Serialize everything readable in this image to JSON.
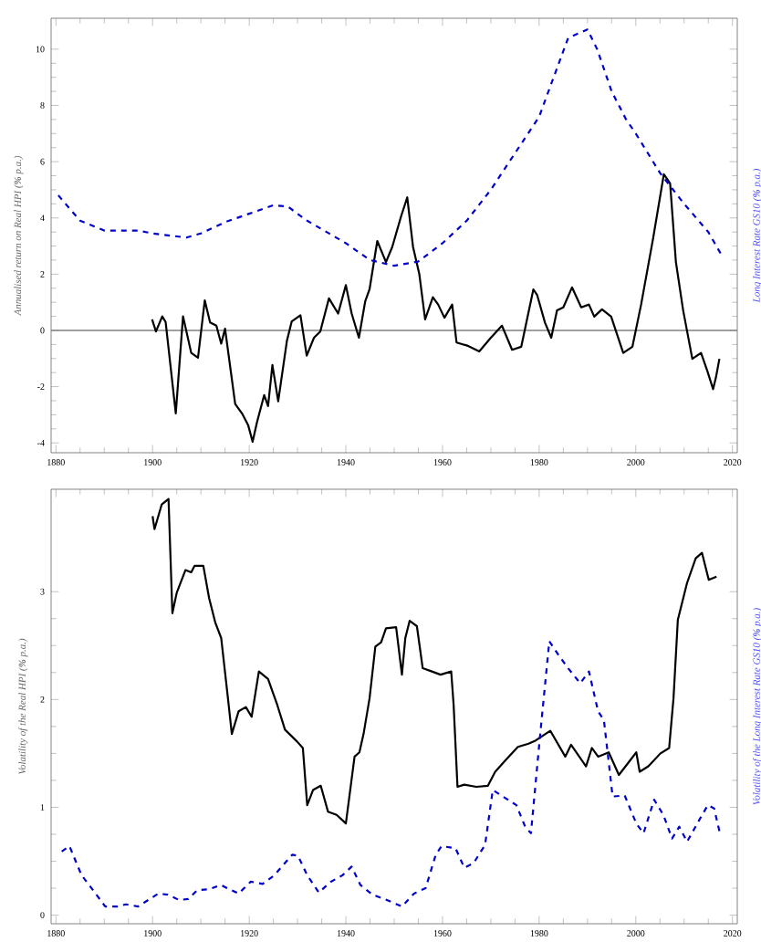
{
  "chart_data": [
    {
      "type": "line",
      "ylabel": "Annualised return on Real HPI (**%** p.a.)",
      "y2label": "Long Interest Rate GS10 (**%** p.a.)",
      "xlim": [
        1879,
        2021
      ],
      "ylim": [
        -4.35,
        11.1
      ],
      "xticks": [
        1880,
        1900,
        1920,
        1940,
        1960,
        1980,
        2000,
        2020
      ],
      "yticks": [
        -4,
        -2,
        0,
        2,
        4,
        6,
        8,
        10
      ],
      "grid": false,
      "ref_lines": [
        {
          "axis": "y",
          "value": 0,
          "color": "#808080"
        }
      ],
      "series": [
        {
          "color": "#000000",
          "line_style": "solid",
          "x": [
            1899.9,
            1900.7,
            1902,
            1902.7,
            1904.8,
            1906.3,
            1908,
            1909.4,
            1910.8,
            1911.9,
            1913.2,
            1914.2,
            1915,
            1917.1,
            1918.5,
            1919.8,
            1920.7,
            1921.6,
            1923.1,
            1923.9,
            1924.8,
            1926,
            1927.8,
            1928.8,
            1930.6,
            1931.9,
            1933.4,
            1934.7,
            1936.5,
            1938.4,
            1940,
            1941.2,
            1942.7,
            1944,
            1944.9,
            1946.5,
            1948.3,
            1949.6,
            1951.4,
            1952.7,
            1953.9,
            1955.2,
            1956.4,
            1958,
            1959.1,
            1960.4,
            1962,
            1962.9,
            1965.1,
            1967.6,
            1970,
            1972.3,
            1974.4,
            1976.3,
            1978.8,
            1979.6,
            1981.2,
            1982.5,
            1983.7,
            1985,
            1986.8,
            1988.7,
            1990.3,
            1991.4,
            1993,
            1994.9,
            1997.4,
            1999.3,
            2001.1,
            2003.6,
            2005.8,
            2007.1,
            2008.3,
            2009.8,
            2011.7,
            2013.5,
            2014.8,
            2016,
            2016.6,
            2017.3
          ],
          "values": [
            0.39,
            -0.04,
            0.5,
            0.3,
            -2.95,
            0.5,
            -0.8,
            -0.97,
            1.07,
            0.28,
            0.17,
            -0.47,
            0.06,
            -2.62,
            -2.95,
            -3.38,
            -3.96,
            -3.27,
            -2.3,
            -2.69,
            -1.23,
            -2.52,
            -0.37,
            0.32,
            0.54,
            -0.9,
            -0.26,
            -0.04,
            1.14,
            0.6,
            1.61,
            0.6,
            -0.26,
            1.03,
            1.46,
            3.18,
            2.43,
            2.97,
            4.04,
            4.73,
            2.97,
            2.0,
            0.39,
            1.18,
            0.92,
            0.45,
            0.92,
            -0.43,
            -0.54,
            -0.75,
            -0.26,
            0.17,
            -0.69,
            -0.58,
            1.46,
            1.25,
            0.28,
            -0.26,
            0.71,
            0.82,
            1.53,
            0.82,
            0.92,
            0.49,
            0.75,
            0.49,
            -0.8,
            -0.58,
            0.92,
            3.29,
            5.55,
            5.23,
            2.43,
            0.71,
            -1.01,
            -0.8,
            -1.44,
            -2.09,
            -1.66,
            -1.01
          ]
        },
        {
          "color": "#0000cc",
          "line_style": "dashed",
          "x": [
            1880.5,
            1885,
            1890,
            1897,
            1900,
            1907,
            1910,
            1915,
            1920,
            1925,
            1928,
            1932,
            1940,
            1945,
            1950,
            1955,
            1960,
            1965,
            1970,
            1975,
            1980,
            1983,
            1986,
            1990,
            1992,
            1995,
            1998,
            2000,
            2005,
            2010,
            2015,
            2018
          ],
          "values": [
            4.8,
            3.9,
            3.55,
            3.55,
            3.45,
            3.3,
            3.45,
            3.85,
            4.15,
            4.45,
            4.4,
            3.9,
            3.1,
            2.5,
            2.3,
            2.45,
            3.1,
            3.9,
            5.0,
            6.3,
            7.6,
            9.0,
            10.4,
            10.7,
            10.0,
            8.5,
            7.5,
            7.0,
            5.6,
            4.5,
            3.5,
            2.6
          ]
        }
      ]
    },
    {
      "type": "line",
      "ylabel": "Volatility of the Real HPI (**%** p.a.)",
      "y2label": "Volatility of the Long Interest Rate GS10 (**%** p.a.)",
      "xlim": [
        1879,
        2021
      ],
      "ylim": [
        -0.08,
        3.95
      ],
      "xticks": [
        1880,
        1900,
        1920,
        1940,
        1960,
        1980,
        2000,
        2020
      ],
      "yticks": [
        0,
        1,
        2,
        3
      ],
      "grid": false,
      "series": [
        {
          "color": "#000000",
          "line_style": "solid",
          "x": [
            1900,
            1900.4,
            1901.9,
            1903.3,
            1904.1,
            1905,
            1906.8,
            1908,
            1908.7,
            1910.5,
            1911.7,
            1913,
            1914.2,
            1915.6,
            1916.4,
            1917.8,
            1919.3,
            1920.5,
            1922,
            1923.9,
            1925.8,
            1927.4,
            1929.9,
            1931.1,
            1932,
            1933.2,
            1934.8,
            1936.3,
            1938.1,
            1940,
            1941.8,
            1942.8,
            1943.7,
            1944.9,
            1946.1,
            1947.3,
            1948.3,
            1950.4,
            1951.6,
            1952.3,
            1953.2,
            1954.7,
            1955.9,
            1957.8,
            1959.6,
            1961.8,
            1962.3,
            1963.1,
            1964.5,
            1967,
            1969.4,
            1970.9,
            1973.1,
            1975.6,
            1977.8,
            1979.3,
            1982.3,
            1985.4,
            1986.6,
            1989.7,
            1990.9,
            1992.2,
            1994.4,
            1996.5,
            1998.9,
            2000.1,
            2000.8,
            2002.6,
            2005.1,
            2006.9,
            2007.8,
            2008.7,
            2010.6,
            2012.4,
            2013.7,
            2015.1,
            2016.7
          ],
          "values": [
            3.7,
            3.58,
            3.81,
            3.86,
            2.8,
            2.99,
            3.2,
            3.18,
            3.24,
            3.24,
            2.94,
            2.71,
            2.57,
            2.01,
            1.68,
            1.89,
            1.93,
            1.84,
            2.26,
            2.19,
            1.95,
            1.72,
            1.61,
            1.55,
            1.02,
            1.16,
            1.2,
            0.96,
            0.93,
            0.85,
            1.47,
            1.51,
            1.69,
            2.01,
            2.49,
            2.53,
            2.66,
            2.67,
            2.23,
            2.57,
            2.73,
            2.68,
            2.29,
            2.26,
            2.23,
            2.26,
            1.95,
            1.19,
            1.21,
            1.19,
            1.2,
            1.33,
            1.44,
            1.56,
            1.59,
            1.62,
            1.71,
            1.47,
            1.58,
            1.38,
            1.55,
            1.47,
            1.51,
            1.3,
            1.44,
            1.51,
            1.33,
            1.38,
            1.5,
            1.55,
            2.01,
            2.74,
            3.08,
            3.31,
            3.36,
            3.11,
            3.14
          ]
        },
        {
          "color": "#0000cc",
          "line_style": "dashed",
          "x": [
            1881.2,
            1882.8,
            1885.3,
            1887.7,
            1890.2,
            1892.7,
            1894.5,
            1897,
            1901.2,
            1903.1,
            1905.5,
            1907.4,
            1909.2,
            1911.7,
            1914.1,
            1915.4,
            1917.8,
            1920.3,
            1922.8,
            1925.2,
            1928.9,
            1930.1,
            1932,
            1934.4,
            1936.9,
            1939.3,
            1941.2,
            1943,
            1945.5,
            1948.5,
            1951.6,
            1954.1,
            1956.5,
            1958.6,
            1959.8,
            1962.7,
            1964.5,
            1966.4,
            1968.8,
            1970.4,
            1972.5,
            1975.3,
            1977.1,
            1978.3,
            1980.2,
            1982.1,
            1984.2,
            1986,
            1988.5,
            1990.3,
            1992.2,
            1993.4,
            1995.2,
            1997.7,
            2000.1,
            2001.6,
            2003.8,
            2005.7,
            2007.5,
            2009,
            2010.6,
            2013.1,
            2014.9,
            2016.2,
            2017.4
          ],
          "values": [
            0.59,
            0.64,
            0.37,
            0.23,
            0.08,
            0.08,
            0.1,
            0.08,
            0.2,
            0.19,
            0.14,
            0.15,
            0.23,
            0.24,
            0.28,
            0.25,
            0.2,
            0.31,
            0.29,
            0.37,
            0.56,
            0.55,
            0.37,
            0.21,
            0.31,
            0.37,
            0.45,
            0.28,
            0.19,
            0.14,
            0.08,
            0.2,
            0.25,
            0.56,
            0.64,
            0.62,
            0.44,
            0.48,
            0.65,
            1.16,
            1.1,
            1.02,
            0.82,
            0.76,
            1.67,
            2.54,
            2.4,
            2.29,
            2.15,
            2.26,
            1.89,
            1.81,
            1.1,
            1.11,
            0.85,
            0.76,
            1.07,
            0.93,
            0.71,
            0.82,
            0.68,
            0.88,
            1.02,
            0.99,
            0.76
          ]
        }
      ]
    }
  ]
}
